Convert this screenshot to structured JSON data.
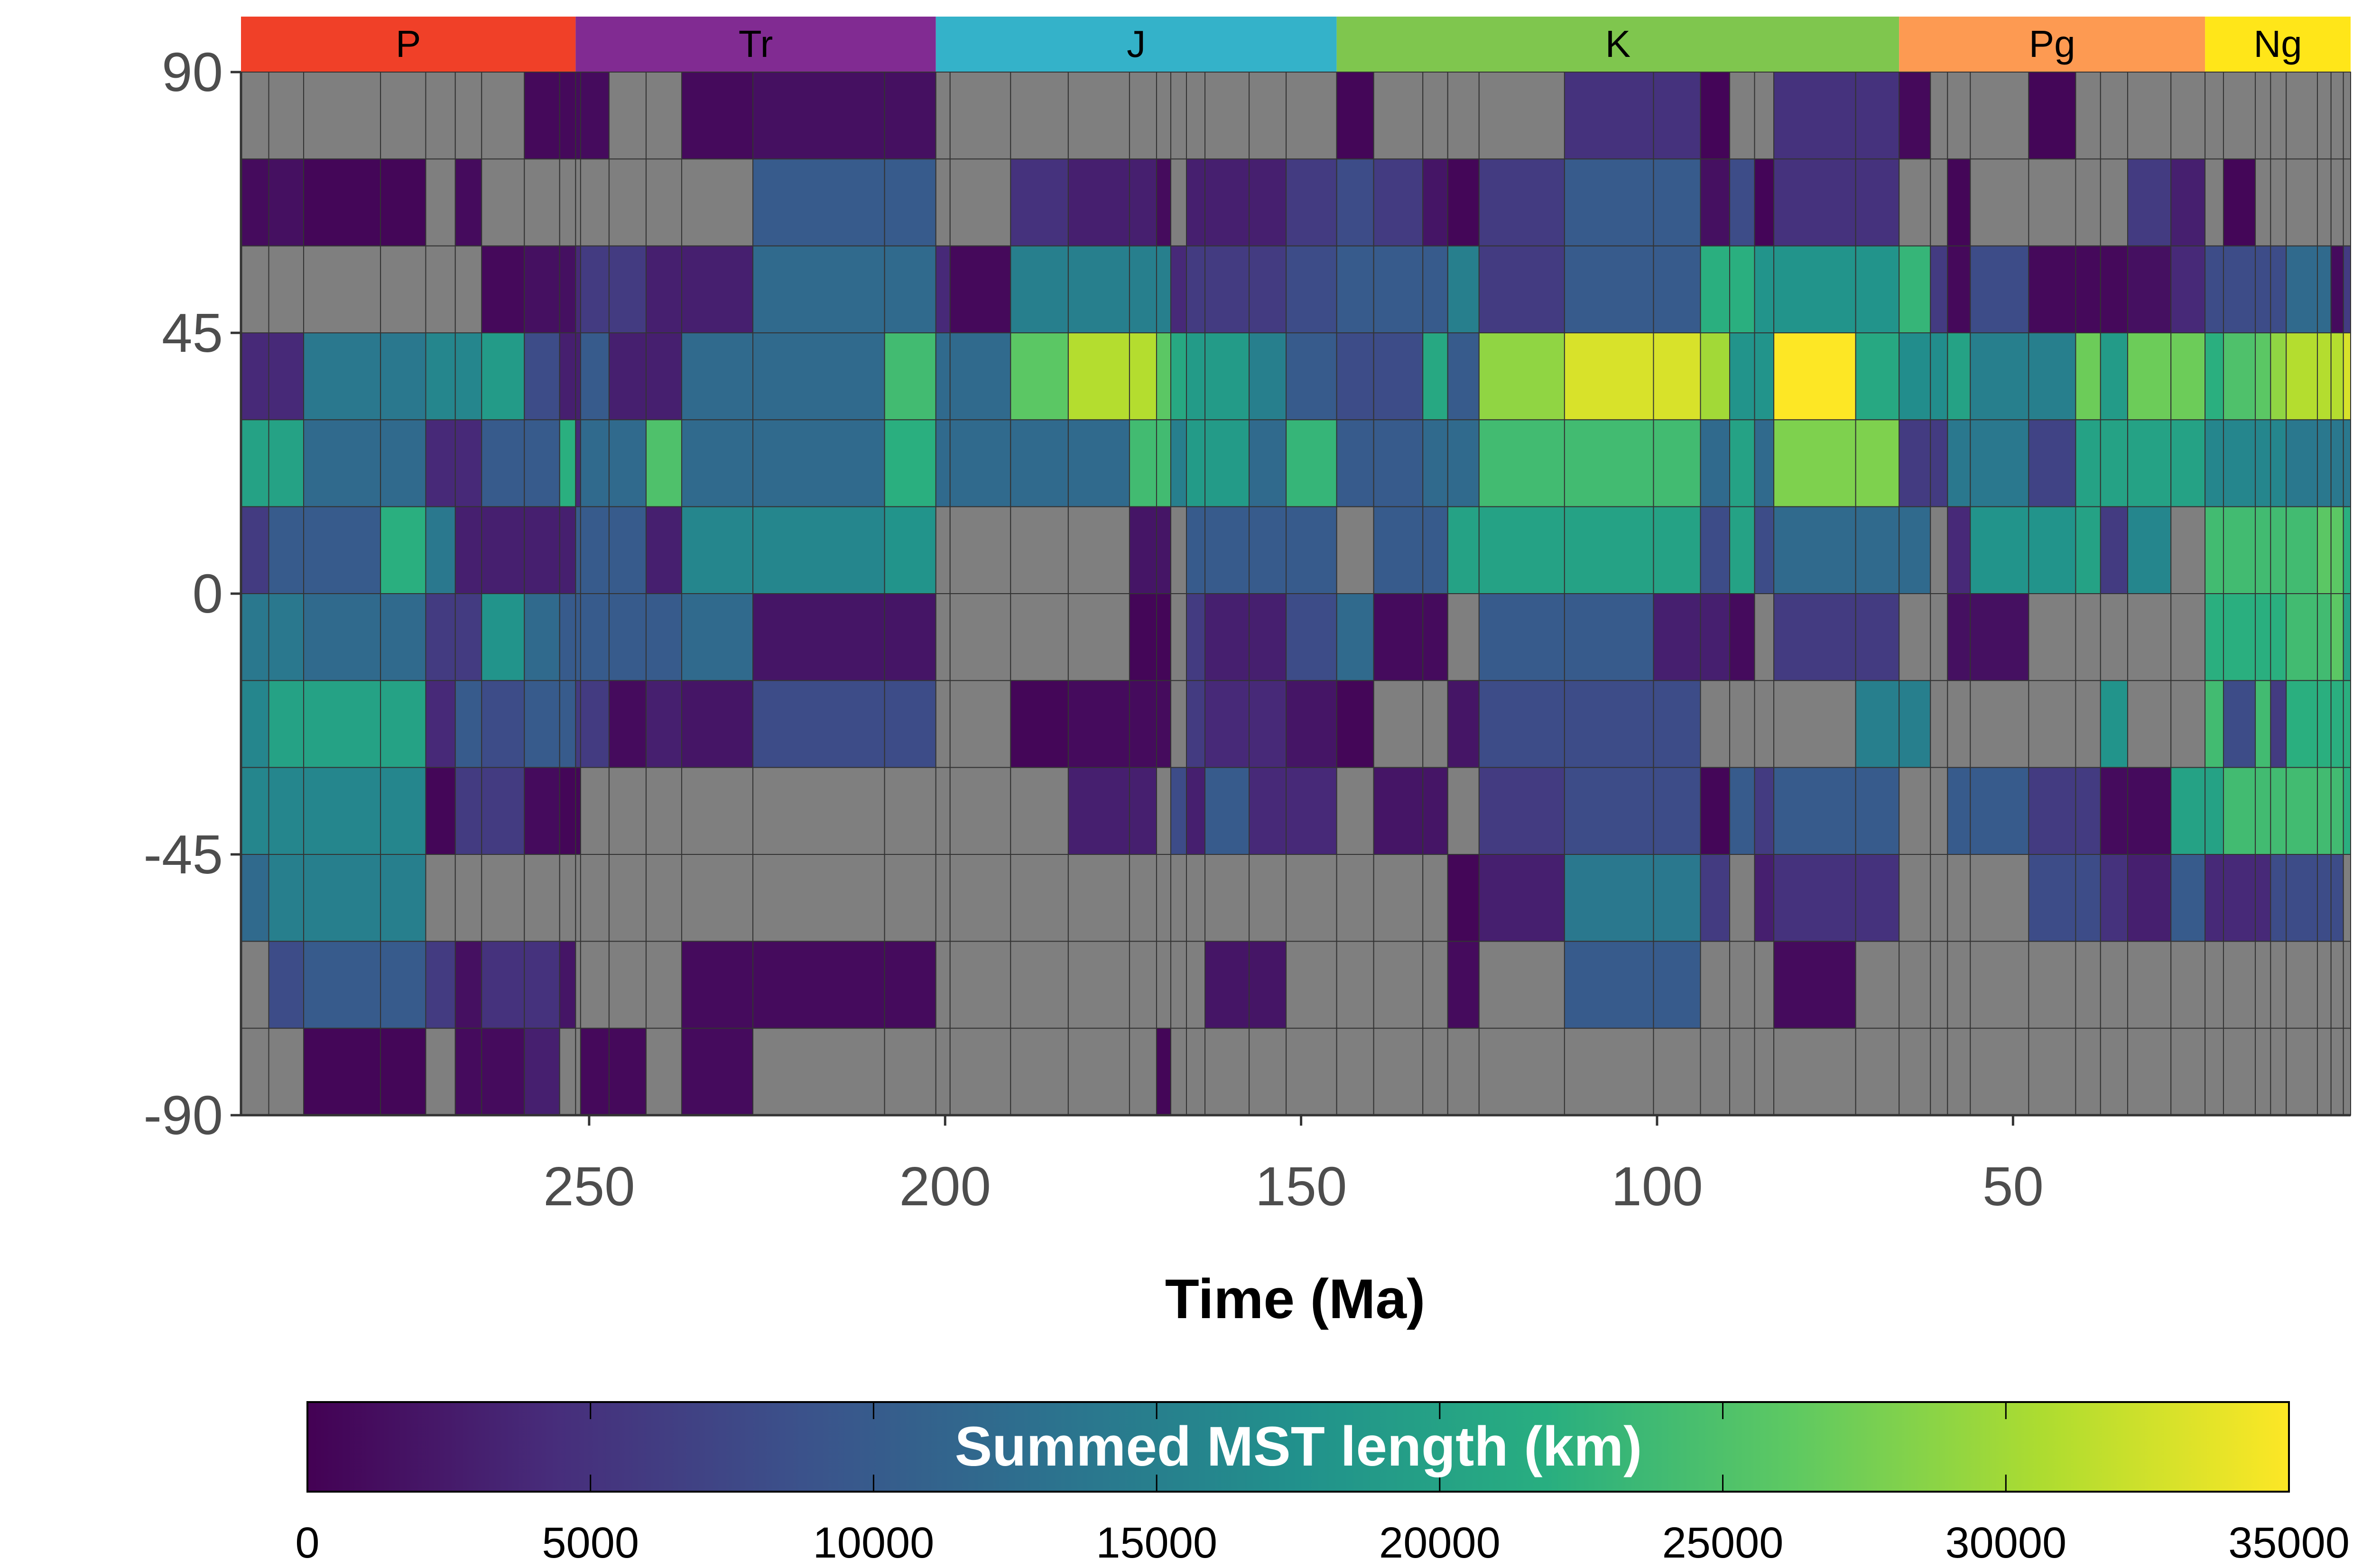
{
  "chart_data": {
    "type": "heatmap",
    "title": "",
    "xlabel": "Time (Ma)",
    "ylabel": "",
    "xlim": [
      298.9,
      2.58
    ],
    "ylim": [
      -90,
      90
    ],
    "x_ticks": [
      "250",
      "200",
      "150",
      "100",
      "50"
    ],
    "x_tick_values": [
      250,
      200,
      150,
      100,
      50
    ],
    "y_ticks": [
      "90",
      "45",
      "0",
      "-45",
      "-90"
    ],
    "y_tick_values": [
      90,
      45,
      0,
      -45,
      -90
    ],
    "periods": [
      {
        "label": "P",
        "start": 298.9,
        "end": 251.9,
        "color": "#F04028"
      },
      {
        "label": "Tr",
        "start": 251.9,
        "end": 201.3,
        "color": "#812B92"
      },
      {
        "label": "J",
        "start": 201.3,
        "end": 145.0,
        "color": "#34B2C9"
      },
      {
        "label": "K",
        "start": 145.0,
        "end": 66.0,
        "color": "#7FC64E"
      },
      {
        "label": "Pg",
        "start": 66.0,
        "end": 23.03,
        "color": "#FD9A52"
      },
      {
        "label": "Ng",
        "start": 23.03,
        "end": 2.58,
        "color": "#FFE619"
      }
    ],
    "time_bins": [
      [
        298.9,
        295.0
      ],
      [
        295.0,
        290.1
      ],
      [
        290.1,
        279.3
      ],
      [
        279.3,
        272.95
      ],
      [
        272.95,
        268.8
      ],
      [
        268.8,
        265.1
      ],
      [
        265.1,
        259.1
      ],
      [
        259.1,
        254.14
      ],
      [
        254.14,
        251.9
      ],
      [
        251.9,
        251.2
      ],
      [
        251.2,
        247.2
      ],
      [
        247.2,
        242.0
      ],
      [
        242.0,
        237.0
      ],
      [
        237.0,
        227.0
      ],
      [
        227.0,
        208.5
      ],
      [
        208.5,
        201.3
      ],
      [
        201.3,
        199.3
      ],
      [
        199.3,
        190.8
      ],
      [
        190.8,
        182.7
      ],
      [
        182.7,
        174.1
      ],
      [
        174.1,
        170.3
      ],
      [
        170.3,
        168.3
      ],
      [
        168.3,
        166.1
      ],
      [
        166.1,
        163.5
      ],
      [
        163.5,
        157.3
      ],
      [
        157.3,
        152.1
      ],
      [
        152.1,
        145.0
      ],
      [
        145.0,
        139.8
      ],
      [
        139.8,
        132.9
      ],
      [
        132.9,
        129.4
      ],
      [
        129.4,
        125.0
      ],
      [
        125.0,
        113.0
      ],
      [
        113.0,
        100.5
      ],
      [
        100.5,
        93.9
      ],
      [
        93.9,
        89.8
      ],
      [
        89.8,
        86.3
      ],
      [
        86.3,
        83.6
      ],
      [
        83.6,
        72.1
      ],
      [
        72.1,
        66.0
      ],
      [
        66.0,
        61.6
      ],
      [
        61.6,
        59.2
      ],
      [
        59.2,
        56.0
      ],
      [
        56.0,
        47.8
      ],
      [
        47.8,
        41.2
      ],
      [
        41.2,
        37.71
      ],
      [
        37.71,
        33.9
      ],
      [
        33.9,
        27.82
      ],
      [
        27.82,
        23.03
      ],
      [
        23.03,
        20.44
      ],
      [
        20.44,
        15.97
      ],
      [
        15.97,
        13.82
      ],
      [
        13.82,
        11.63
      ],
      [
        11.63,
        7.246
      ],
      [
        7.246,
        5.333
      ],
      [
        5.333,
        3.6
      ],
      [
        3.6,
        2.58
      ]
    ],
    "lat_bins": [
      [
        75,
        90
      ],
      [
        60,
        75
      ],
      [
        45,
        60
      ],
      [
        30,
        45
      ],
      [
        15,
        30
      ],
      [
        0,
        15
      ],
      [
        -15,
        0
      ],
      [
        -30,
        -15
      ],
      [
        -45,
        -30
      ],
      [
        -60,
        -45
      ],
      [
        -75,
        -60
      ],
      [
        -90,
        -75
      ]
    ],
    "cells": [
      [
        null,
        null,
        null,
        null,
        null,
        null,
        null,
        800,
        800,
        1000,
        1000,
        null,
        null,
        900,
        1500,
        1500,
        null,
        null,
        null,
        null,
        null,
        null,
        null,
        null,
        null,
        null,
        null,
        500,
        null,
        null,
        null,
        null,
        5000,
        5000,
        400,
        null,
        null,
        5000,
        5000,
        800,
        null,
        null,
        null,
        500,
        null,
        null,
        null,
        null,
        null,
        null,
        null,
        null,
        null,
        null,
        null,
        null
      ],
      [
        1000,
        1500,
        500,
        500,
        null,
        1000,
        null,
        null,
        null,
        null,
        null,
        null,
        null,
        null,
        10000,
        10000,
        null,
        null,
        5000,
        3000,
        3000,
        1000,
        null,
        3000,
        3000,
        3000,
        6000,
        8000,
        6000,
        2000,
        500,
        6000,
        10000,
        10000,
        1500,
        8000,
        400,
        5000,
        5000,
        null,
        null,
        500,
        null,
        null,
        null,
        null,
        6000,
        3000,
        null,
        500,
        null,
        null,
        null,
        null,
        null,
        null
      ],
      [
        null,
        null,
        null,
        null,
        null,
        null,
        800,
        1500,
        1500,
        4000,
        6000,
        6000,
        3000,
        3000,
        12000,
        12000,
        4000,
        800,
        15000,
        15000,
        15000,
        15000,
        4000,
        6000,
        6000,
        6000,
        8000,
        10000,
        10000,
        10000,
        15000,
        6000,
        10000,
        10000,
        22000,
        22000,
        18000,
        18000,
        18000,
        23000,
        6000,
        800,
        8000,
        800,
        800,
        800,
        1500,
        4000,
        8000,
        8000,
        8000,
        8000,
        12000,
        12000,
        1000,
        6000
      ],
      [
        4000,
        4000,
        14000,
        14000,
        16000,
        16000,
        19000,
        8000,
        3000,
        3000,
        10000,
        3000,
        3000,
        12000,
        12000,
        24000,
        12000,
        12000,
        26000,
        31000,
        31000,
        26000,
        21000,
        19000,
        19000,
        15000,
        10000,
        8000,
        8000,
        21000,
        10000,
        29000,
        33000,
        33000,
        30000,
        18000,
        18000,
        35000,
        21000,
        17000,
        17000,
        20000,
        15000,
        15000,
        27000,
        19000,
        27000,
        27000,
        22000,
        25000,
        26000,
        29000,
        31000,
        31000,
        31000,
        33000
      ],
      [
        20000,
        20000,
        12000,
        12000,
        4000,
        4000,
        10000,
        10000,
        22000,
        4000,
        12000,
        12000,
        25000,
        12000,
        12000,
        22000,
        12000,
        12000,
        12000,
        12000,
        24000,
        24000,
        15000,
        19000,
        19000,
        12000,
        23000,
        10000,
        10000,
        12000,
        12000,
        24000,
        24000,
        24000,
        12000,
        20000,
        12000,
        28000,
        28000,
        6000,
        6000,
        14000,
        14000,
        7000,
        20000,
        20000,
        20000,
        20000,
        16000,
        16000,
        16000,
        16000,
        14000,
        14000,
        14000,
        14000
      ],
      [
        6000,
        10000,
        10000,
        22000,
        14000,
        3000,
        3000,
        3000,
        3000,
        10000,
        10000,
        10000,
        3000,
        16000,
        16000,
        18000,
        null,
        null,
        null,
        null,
        2000,
        2000,
        null,
        10000,
        10000,
        10000,
        10000,
        null,
        10000,
        10000,
        20000,
        20000,
        20000,
        20000,
        8000,
        20000,
        8000,
        12000,
        12000,
        12000,
        null,
        4000,
        18000,
        18000,
        20000,
        6000,
        16000,
        null,
        24000,
        24000,
        24000,
        24000,
        24000,
        26000,
        26000,
        22000
      ],
      [
        14000,
        14000,
        12000,
        12000,
        6000,
        6000,
        18000,
        12000,
        10000,
        10000,
        10000,
        10000,
        10000,
        12000,
        2000,
        2000,
        null,
        null,
        null,
        null,
        500,
        500,
        null,
        6000,
        3000,
        3000,
        8000,
        12000,
        1000,
        1000,
        null,
        10000,
        10000,
        3000,
        3000,
        1000,
        null,
        6000,
        6000,
        null,
        null,
        1500,
        1500,
        null,
        null,
        null,
        null,
        null,
        22000,
        22000,
        22000,
        22000,
        24000,
        24000,
        26000,
        20000
      ],
      [
        16000,
        20000,
        20000,
        20000,
        4000,
        10000,
        8000,
        10000,
        10000,
        6000,
        6000,
        1000,
        3000,
        2000,
        8000,
        8000,
        null,
        null,
        500,
        1000,
        1000,
        1000,
        null,
        6000,
        4000,
        4000,
        2000,
        500,
        null,
        null,
        2000,
        8000,
        8000,
        8000,
        null,
        null,
        null,
        null,
        15000,
        15000,
        null,
        null,
        null,
        null,
        null,
        18000,
        null,
        null,
        24000,
        8000,
        24000,
        6000,
        22000,
        22000,
        22000,
        22000
      ],
      [
        16000,
        16000,
        16000,
        16000,
        500,
        6000,
        6000,
        1000,
        500,
        500,
        null,
        null,
        null,
        null,
        null,
        null,
        null,
        null,
        null,
        3000,
        3000,
        null,
        8000,
        3000,
        10000,
        4000,
        4000,
        null,
        2000,
        2000,
        null,
        6000,
        8000,
        8000,
        500,
        10000,
        6000,
        10000,
        10000,
        null,
        null,
        10000,
        10000,
        6000,
        6000,
        1000,
        1000,
        20000,
        20000,
        24000,
        24000,
        24000,
        24000,
        24000,
        24000,
        22000
      ],
      [
        12000,
        15000,
        15000,
        15000,
        null,
        null,
        null,
        null,
        null,
        null,
        null,
        null,
        null,
        null,
        null,
        null,
        null,
        null,
        null,
        null,
        null,
        null,
        null,
        null,
        null,
        null,
        null,
        null,
        null,
        null,
        500,
        3000,
        14000,
        14000,
        6000,
        null,
        3000,
        5000,
        5000,
        null,
        null,
        null,
        null,
        8000,
        8000,
        5000,
        3000,
        10000,
        4000,
        4000,
        4000,
        8000,
        8000,
        8000,
        8000,
        null
      ],
      [
        null,
        8000,
        10000,
        10000,
        6000,
        1500,
        5000,
        5000,
        2000,
        null,
        null,
        null,
        null,
        1000,
        1000,
        1000,
        null,
        null,
        null,
        null,
        null,
        null,
        null,
        null,
        2000,
        2000,
        null,
        null,
        null,
        null,
        1000,
        null,
        10000,
        10000,
        null,
        null,
        null,
        1000,
        null,
        null,
        null,
        null,
        null,
        null,
        null,
        null,
        null,
        null,
        null,
        null,
        null,
        null,
        null,
        null,
        null,
        null
      ],
      [
        null,
        null,
        500,
        500,
        null,
        1000,
        1000,
        3000,
        null,
        null,
        800,
        800,
        null,
        1000,
        null,
        null,
        null,
        null,
        null,
        null,
        null,
        500,
        null,
        null,
        null,
        null,
        null,
        null,
        null,
        null,
        null,
        null,
        null,
        null,
        null,
        null,
        null,
        null,
        null,
        null,
        null,
        null,
        null,
        null,
        null,
        null,
        null,
        null,
        null,
        null,
        null,
        null,
        null,
        null,
        null,
        null
      ]
    ],
    "na_color": "#7F7F7F",
    "colorscale": "viridis",
    "legend": {
      "title": "Summed MST length (km)",
      "position": "bottom",
      "min": 0,
      "max": 35000,
      "ticks": [
        "0",
        "5000",
        "10000",
        "15000",
        "20000",
        "25000",
        "30000",
        "35000"
      ],
      "tick_values": [
        0,
        5000,
        10000,
        15000,
        20000,
        25000,
        30000,
        35000
      ]
    },
    "grid": false
  }
}
